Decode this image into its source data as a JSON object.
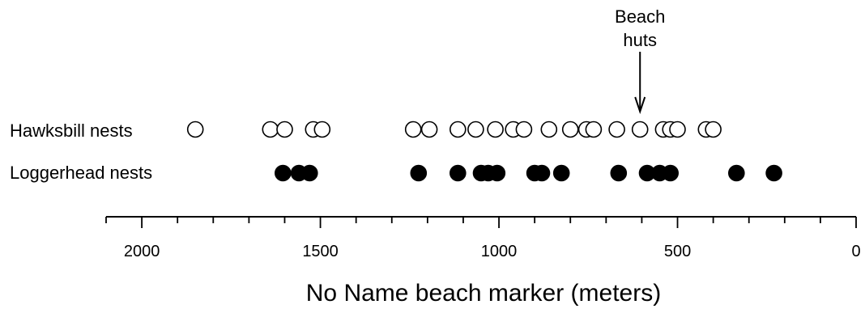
{
  "chart_data": {
    "type": "scatter",
    "xlabel": "No Name beach marker (meters)",
    "x_reversed": true,
    "xlim": [
      2100,
      0
    ],
    "major_ticks": [
      2000,
      1500,
      1000,
      500,
      0
    ],
    "tick_labels": [
      "2000",
      "1500",
      "1000",
      "500",
      "0"
    ],
    "minor_tick_step": 100,
    "grid": false,
    "annotation": {
      "lines": [
        "Beach",
        "huts"
      ],
      "x": 605,
      "arrow": true
    },
    "series": [
      {
        "name": "Hawksbill nests",
        "marker": "open-circle",
        "x": [
          1850,
          1640,
          1600,
          1520,
          1495,
          1240,
          1195,
          1115,
          1065,
          1010,
          960,
          930,
          860,
          800,
          755,
          735,
          670,
          605,
          540,
          520,
          500,
          420,
          400
        ]
      },
      {
        "name": "Loggerhead nests",
        "marker": "filled-circle",
        "x": [
          1605,
          1560,
          1530,
          1225,
          1115,
          1050,
          1030,
          1005,
          900,
          880,
          825,
          665,
          585,
          550,
          520,
          335,
          230
        ]
      }
    ]
  },
  "colors": {
    "ink": "#000000",
    "background": "#ffffff"
  }
}
